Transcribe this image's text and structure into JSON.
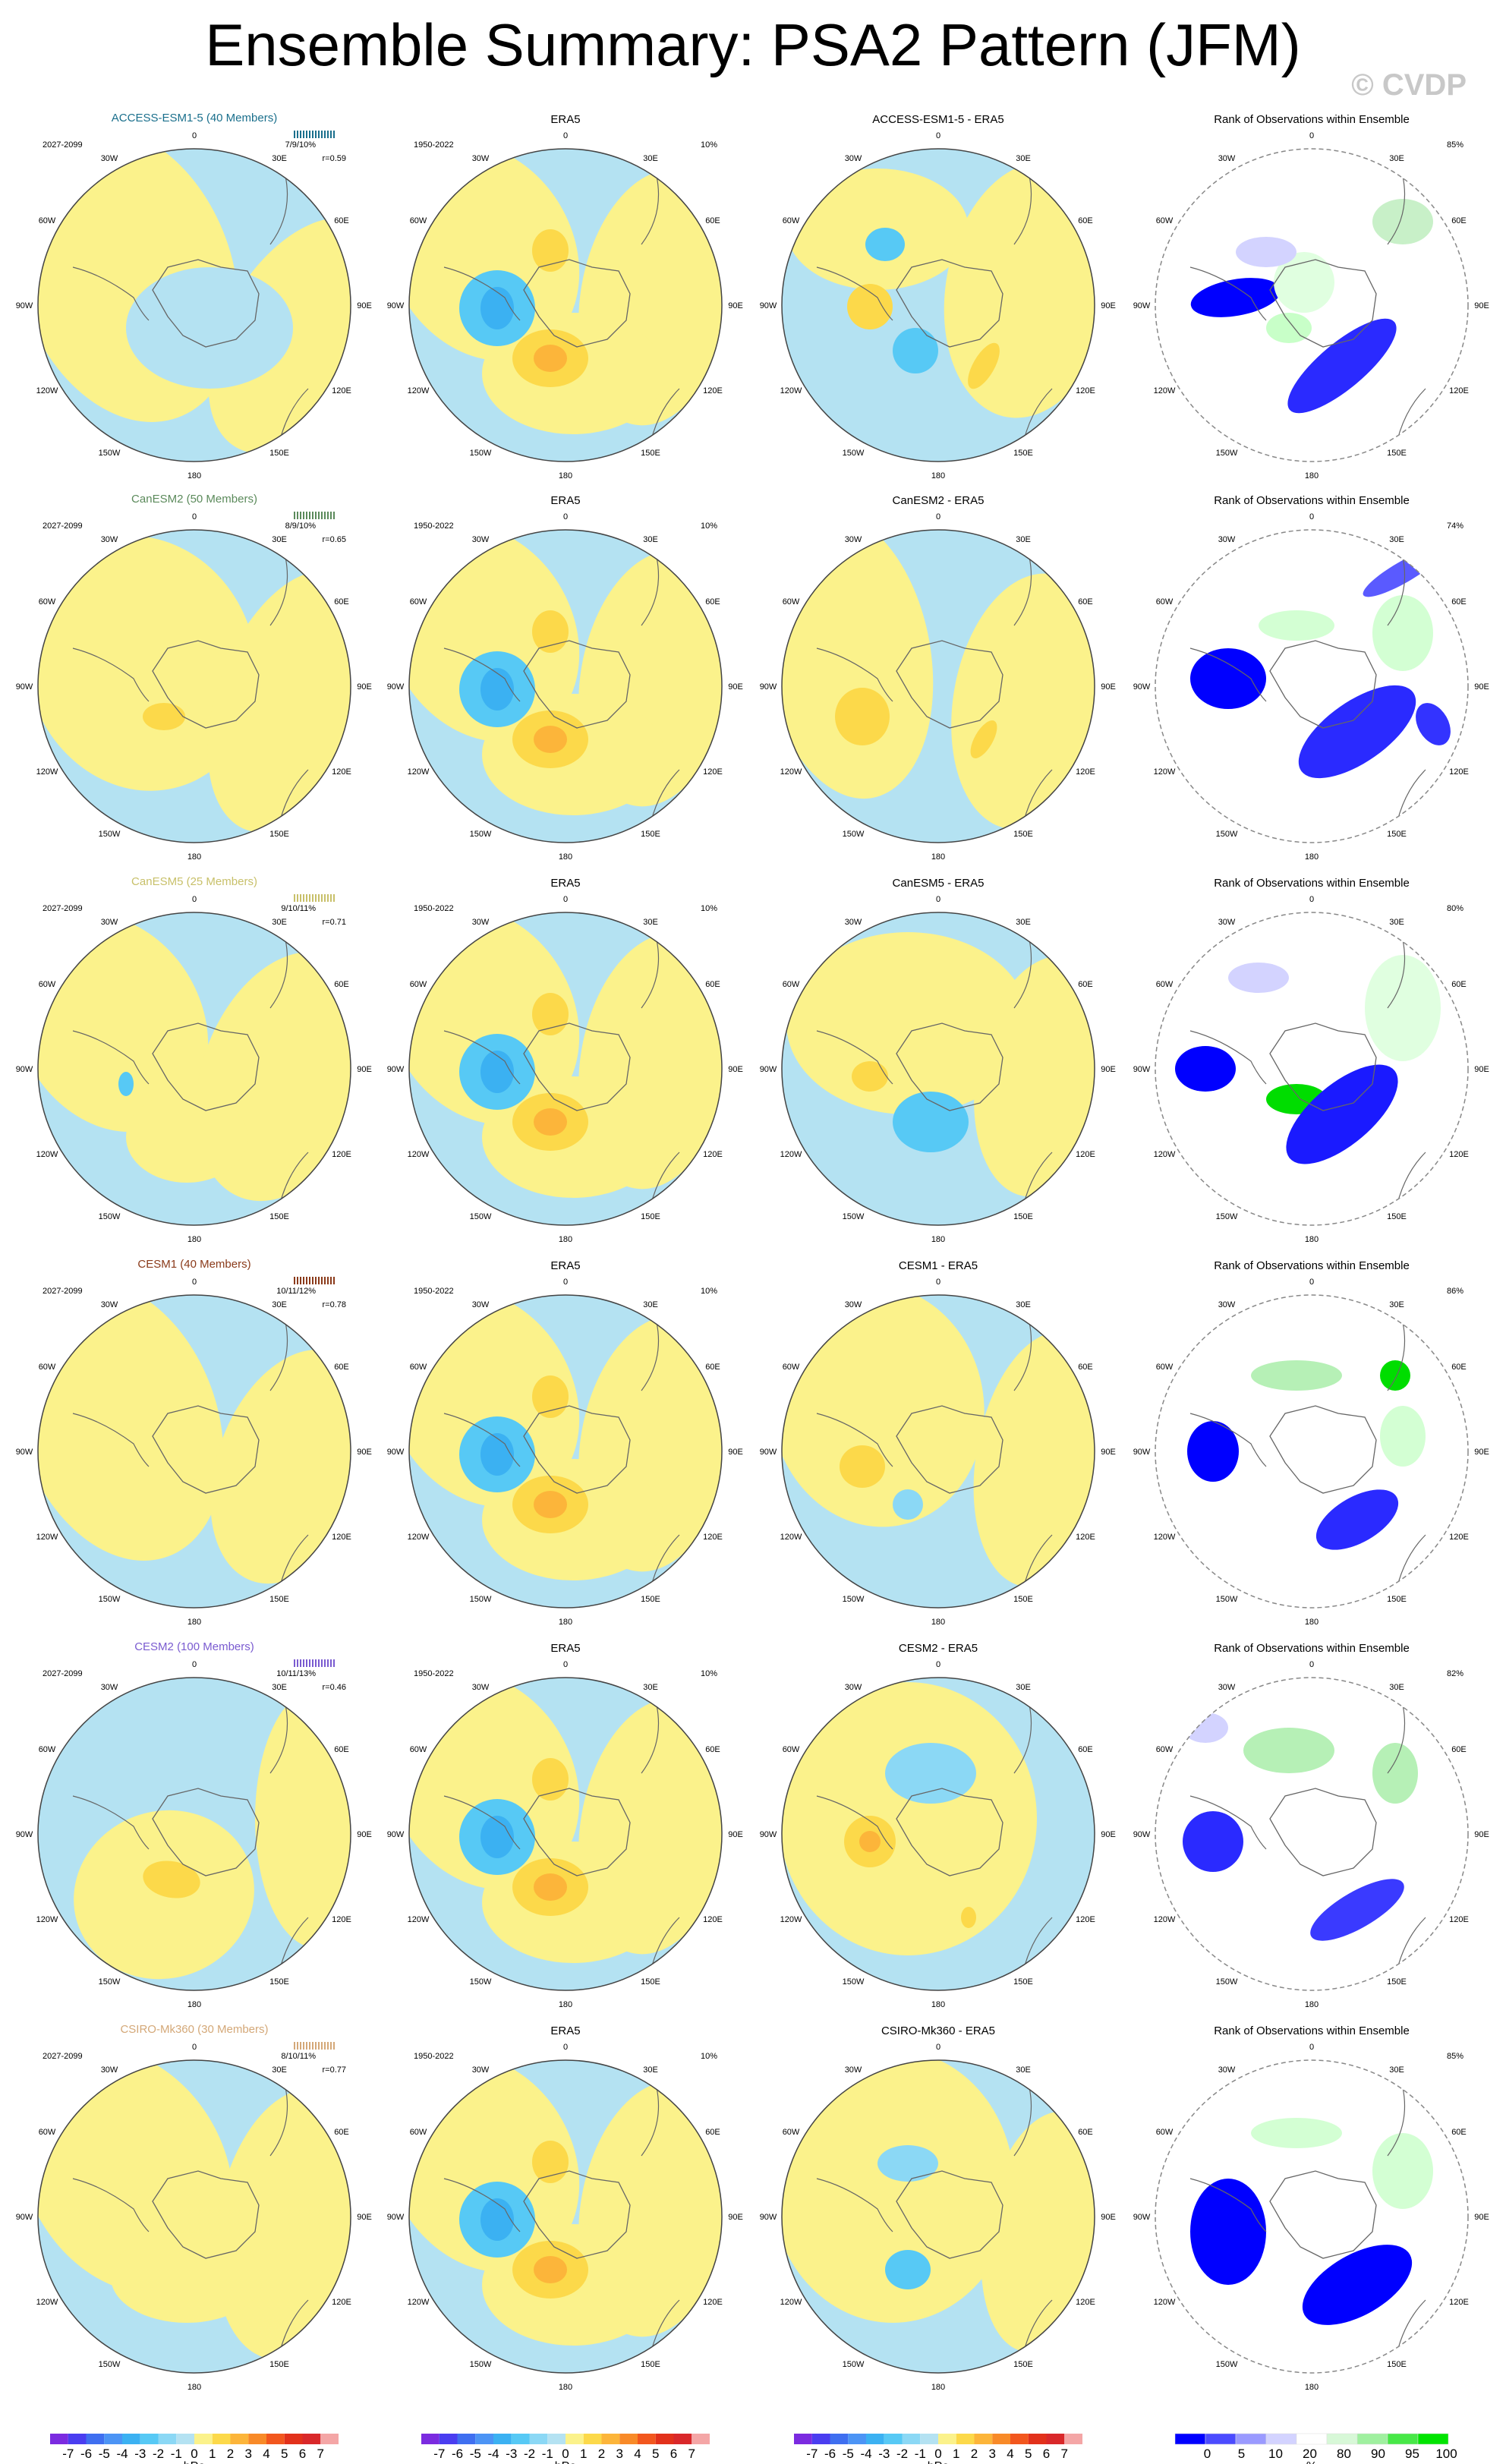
{
  "title": "Ensemble Summary: PSA2 Pattern (JFM)",
  "watermark": "© CVDP",
  "chart_data": {
    "type": "map-panels",
    "columns": [
      "model",
      "obs",
      "difference",
      "rank"
    ],
    "obs_title": "ERA5",
    "obs_period": "1950-2022",
    "obs_pct": "10%",
    "rank_title": "Rank of Observations within Ensemble",
    "model_period": "2027-2099",
    "lon_labels": [
      "0",
      "30E",
      "60E",
      "90E",
      "120E",
      "150E",
      "180",
      "150W",
      "120W",
      "90W",
      "60W",
      "30W"
    ],
    "rows": [
      {
        "title": "ACCESS-ESM1-5 (40 Members)",
        "color": "#1a6f8c",
        "stats": "7/9/10%",
        "r": "r=0.59",
        "diff_title": "ACCESS-ESM1-5 - ERA5",
        "rank_pct": "85%"
      },
      {
        "title": "CanESM2 (50 Members)",
        "color": "#5b8a5b",
        "stats": "8/9/10%",
        "r": "r=0.65",
        "diff_title": "CanESM2 - ERA5",
        "rank_pct": "74%"
      },
      {
        "title": "CanESM5 (25 Members)",
        "color": "#c8c06a",
        "stats": "9/10/11%",
        "r": "r=0.71",
        "diff_title": "CanESM5 - ERA5",
        "rank_pct": "80%"
      },
      {
        "title": "CESM1 (40 Members)",
        "color": "#8a3a1a",
        "stats": "10/11/12%",
        "r": "r=0.78",
        "diff_title": "CESM1 - ERA5",
        "rank_pct": "86%"
      },
      {
        "title": "CESM2 (100 Members)",
        "color": "#7a5bd0",
        "stats": "10/11/13%",
        "r": "r=0.46",
        "diff_title": "CESM2 - ERA5",
        "rank_pct": "82%"
      },
      {
        "title": "CSIRO-Mk360 (30 Members)",
        "color": "#d4a878",
        "stats": "8/10/11%",
        "r": "r=0.77",
        "diff_title": "CSIRO-Mk360 - ERA5",
        "rank_pct": "85%"
      }
    ],
    "colorbar_hpa": {
      "labels": [
        "-7",
        "-6",
        "-5",
        "-4",
        "-3",
        "-2",
        "-1",
        "0",
        "1",
        "2",
        "3",
        "4",
        "5",
        "6",
        "7"
      ],
      "colors": [
        "#7b2be0",
        "#4a3df0",
        "#3f6ff0",
        "#4c94f5",
        "#3bb1f2",
        "#57c9f5",
        "#8bd8f5",
        "#b4e2f2",
        "#fbf28b",
        "#fcd94a",
        "#fcb53a",
        "#f88a28",
        "#f2571e",
        "#e2311b",
        "#d9282a",
        "#f4a6a6"
      ],
      "unit": "hPa"
    },
    "colorbar_pct": {
      "labels": [
        "0",
        "5",
        "10",
        "20",
        "80",
        "90",
        "95",
        "100"
      ],
      "colors": [
        "#0000ff",
        "#4b4bff",
        "#9a9aff",
        "#d3d3ff",
        "#ffffff",
        "#d7f8d7",
        "#9ff09f",
        "#47e847",
        "#00e400"
      ],
      "unit": "%"
    }
  }
}
